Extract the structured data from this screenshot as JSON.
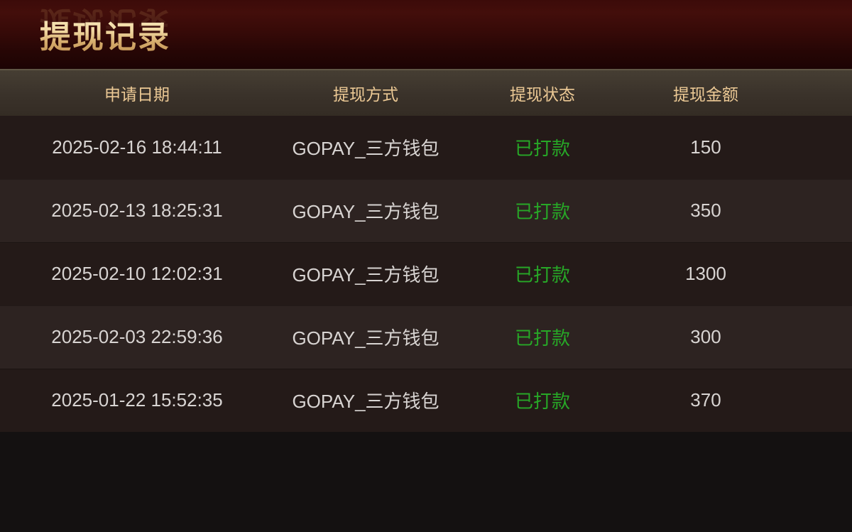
{
  "page": {
    "title": "提现记录"
  },
  "table": {
    "columns": [
      {
        "key": "date",
        "label": "申请日期"
      },
      {
        "key": "method",
        "label": "提现方式"
      },
      {
        "key": "status",
        "label": "提现状态"
      },
      {
        "key": "amount",
        "label": "提现金额"
      }
    ],
    "rows": [
      {
        "date": "2025-02-16 18:44:11",
        "method": "GOPAY_三方钱包",
        "status": "已打款",
        "amount": "150"
      },
      {
        "date": "2025-02-13 18:25:31",
        "method": "GOPAY_三方钱包",
        "status": "已打款",
        "amount": "350"
      },
      {
        "date": "2025-02-10 12:02:31",
        "method": "GOPAY_三方钱包",
        "status": "已打款",
        "amount": "1300"
      },
      {
        "date": "2025-02-03 22:59:36",
        "method": "GOPAY_三方钱包",
        "status": "已打款",
        "amount": "300"
      },
      {
        "date": "2025-01-22 15:52:35",
        "method": "GOPAY_三方钱包",
        "status": "已打款",
        "amount": "370"
      }
    ]
  },
  "colors": {
    "banner_maroon": "#3c0b09",
    "title_gold": "#edd49e",
    "header_bg": "#3b332a",
    "header_text": "#ecc995",
    "row_odd_bg": "#241a18",
    "row_even_bg": "#2d2321",
    "row_text": "#d8d4d2",
    "status_paid_green": "#27a827",
    "page_bg": "#141111"
  }
}
